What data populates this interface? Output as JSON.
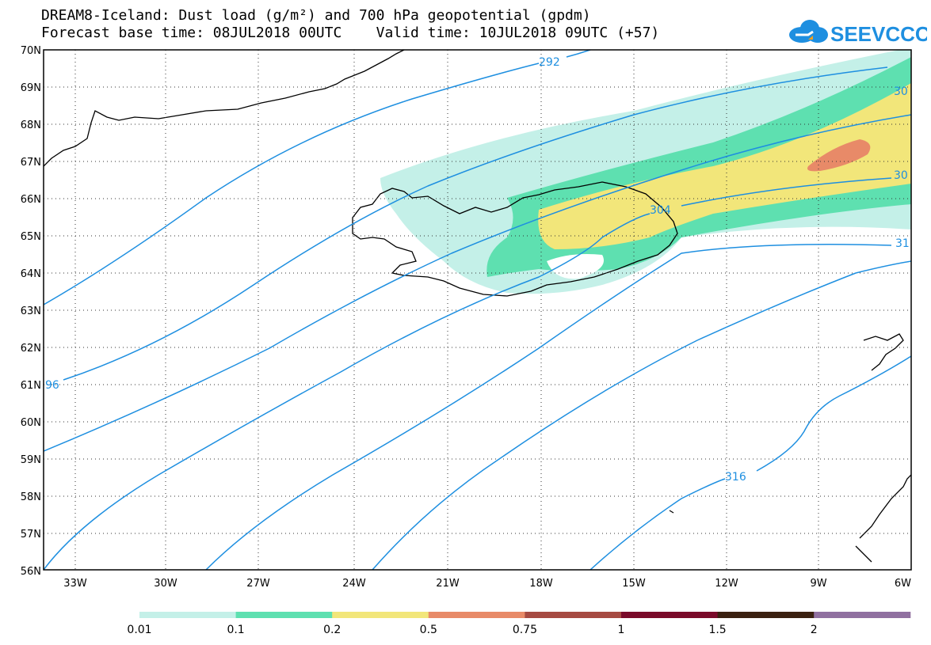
{
  "header": {
    "title_line1": "DREAM8-Iceland: Dust load (g/m²) and 700 hPa geopotential (gpdm)",
    "title_line2": "Forecast base time: 08JUL2018 00UTC    Valid time: 10JUL2018 09UTC (+57)",
    "logo_text": "SEEVCCC"
  },
  "colors": {
    "contour": "#1e8fe0",
    "logo_blue": "#1e8fe0",
    "logo_orange": "#f0a020"
  },
  "map": {
    "lon_range": [
      -34.5,
      -6
    ],
    "lat_range": [
      56,
      70
    ],
    "lon_ticks": [
      "33W",
      "30W",
      "27W",
      "24W",
      "21W",
      "18W",
      "15W",
      "12W",
      "9W",
      "6W"
    ],
    "lat_ticks": [
      "70N",
      "69N",
      "68N",
      "67N",
      "66N",
      "65N",
      "64N",
      "63N",
      "62N",
      "61N",
      "60N",
      "59N",
      "58N",
      "57N",
      "56N"
    ],
    "contour_labels": [
      "292",
      "30",
      "30",
      "304",
      "96",
      "31",
      "316"
    ]
  },
  "legend": {
    "colors": [
      "#c4f0e8",
      "#5ee0b0",
      "#f2e67a",
      "#e88a68",
      "#a64a42",
      "#7a0a2a",
      "#3a2010",
      "#9070a0"
    ],
    "labels": [
      "0.01",
      "0.1",
      "0.2",
      "0.5",
      "0.75",
      "1",
      "1.5",
      "2"
    ]
  }
}
